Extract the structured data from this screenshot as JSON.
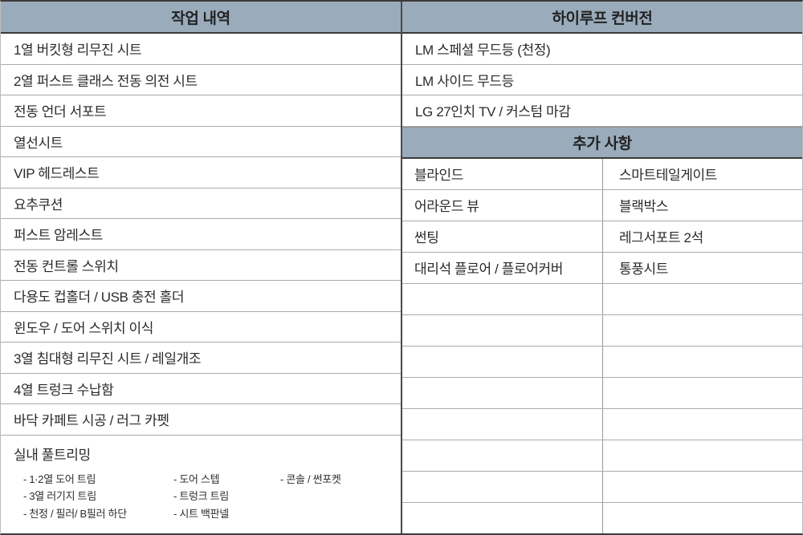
{
  "left_table": {
    "header": "작업 내역",
    "rows": [
      "1열 버킷형 리무진 시트",
      "2열 퍼스트 클래스 전동 의전 시트",
      "전동 언더 서포트",
      "열선시트",
      "VIP 헤드레스트",
      "요추쿠션",
      "퍼스트 암레스트",
      "전동 컨트롤 스위치",
      "다용도 컵홀더 / USB 충전 홀더",
      "윈도우 / 도어 스위치 이식",
      "3열 침대형 리무진 시트 / 레일개조",
      "4열 트렁크 수납함",
      "바닥 카페트 시공 / 러그 카펫"
    ],
    "full_trimming": {
      "title": "실내 풀트리밍",
      "columns": [
        [
          "- 1·2열 도어 트림",
          "- 3열 러기지 트림",
          "- 천정 / 필러/ B필러 하단"
        ],
        [
          "- 도어 스텝",
          "- 트렁크 트림",
          "- 시트 백판넬"
        ],
        [
          "- 콘솔 / 썬포켓"
        ]
      ]
    }
  },
  "right_table": {
    "header": "하이루프 컨버전",
    "rows": [
      "LM 스페셜 무드등 (천정)",
      "LM 사이드 무드등",
      "LG 27인치 TV / 커스텀 마감"
    ],
    "additional": {
      "header": "추가 사항",
      "pairs": [
        [
          "블라인드",
          "스마트테일게이트"
        ],
        [
          "어라운드 뷰",
          "블랙박스"
        ],
        [
          "썬팅",
          "레그서포트 2석"
        ],
        [
          "대리석 플로어 / 플로어커버",
          "통풍시트"
        ]
      ],
      "empty_pair_rows": 8
    }
  },
  "colors": {
    "header_background": "#9aabbb",
    "outer_border_dark": "#3a3a3a",
    "center_divider": "#4a4a4a",
    "row_line_light": "#ababab",
    "pair_divider": "#9a9a9a",
    "text": "#2a2a2a"
  }
}
